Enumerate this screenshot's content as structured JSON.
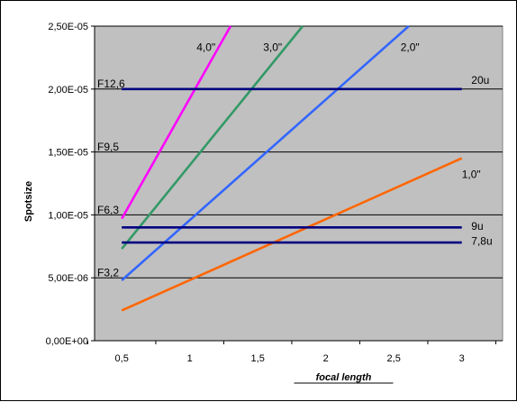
{
  "chart_data": {
    "type": "line",
    "xlabel": "focal  length",
    "ylabel": "Spotsize",
    "xlim": [
      0.3,
      3.3
    ],
    "ylim": [
      0,
      2.5e-05
    ],
    "grid": "horizontal",
    "background": "#c0c0c0",
    "y_ticks": [
      {
        "value": 0,
        "label": "0,00E+00"
      },
      {
        "value": 5e-06,
        "label": "5,00E-06"
      },
      {
        "value": 1e-05,
        "label": "1,00E-05"
      },
      {
        "value": 1.5e-05,
        "label": "1,50E-05"
      },
      {
        "value": 2e-05,
        "label": "2,00E-05"
      },
      {
        "value": 2.5e-05,
        "label": "2,50E-05"
      }
    ],
    "x_ticks": [
      {
        "value": 0.5,
        "label": "0,5"
      },
      {
        "value": 1,
        "label": "1"
      },
      {
        "value": 1.5,
        "label": "1,5"
      },
      {
        "value": 2,
        "label": "2"
      },
      {
        "value": 2.5,
        "label": "2,5"
      },
      {
        "value": 3,
        "label": "3"
      }
    ],
    "series": [
      {
        "name": "4,0\"",
        "color": "#ff00ff",
        "x": [
          0.5,
          1.3
        ],
        "y": [
          9.7e-06,
          2.5e-05
        ],
        "label_at": [
          1.05,
          2.33e-05
        ]
      },
      {
        "name": "3,0\"",
        "color": "#339966",
        "x": [
          0.5,
          1.83
        ],
        "y": [
          7.3e-06,
          2.5e-05
        ],
        "label_at": [
          1.54,
          2.33e-05
        ]
      },
      {
        "name": "2,0\"",
        "color": "#3366ff",
        "x": [
          0.5,
          2.61
        ],
        "y": [
          4.8e-06,
          2.5e-05
        ],
        "label_at": [
          2.55,
          2.33e-05
        ]
      },
      {
        "name": "1,0\"",
        "color": "#ff6600",
        "x": [
          0.5,
          3.0
        ],
        "y": [
          2.4e-06,
          1.45e-05
        ],
        "label_at": [
          3.0,
          1.32e-05
        ]
      },
      {
        "name": "20u",
        "color": "#000080",
        "x": [
          0.5,
          3.0
        ],
        "y": [
          2e-05,
          2e-05
        ],
        "label_at": [
          3.07,
          2.07e-05
        ]
      },
      {
        "name": "9u",
        "color": "#000080",
        "x": [
          0.5,
          3.0
        ],
        "y": [
          9e-06,
          9e-06
        ],
        "label_at": [
          3.07,
          9.1e-06
        ]
      },
      {
        "name": "7,8u",
        "color": "#000080",
        "x": [
          0.5,
          3.0
        ],
        "y": [
          7.8e-06,
          7.8e-06
        ],
        "label_at": [
          3.07,
          7.9e-06
        ]
      }
    ],
    "annotations": [
      {
        "text": "F12,6",
        "x": 0.32,
        "y": 2.04e-05
      },
      {
        "text": "F9,5",
        "x": 0.32,
        "y": 1.54e-05
      },
      {
        "text": "F6,3",
        "x": 0.32,
        "y": 1.04e-05
      },
      {
        "text": "F3,2",
        "x": 0.32,
        "y": 5.4e-06
      }
    ]
  }
}
